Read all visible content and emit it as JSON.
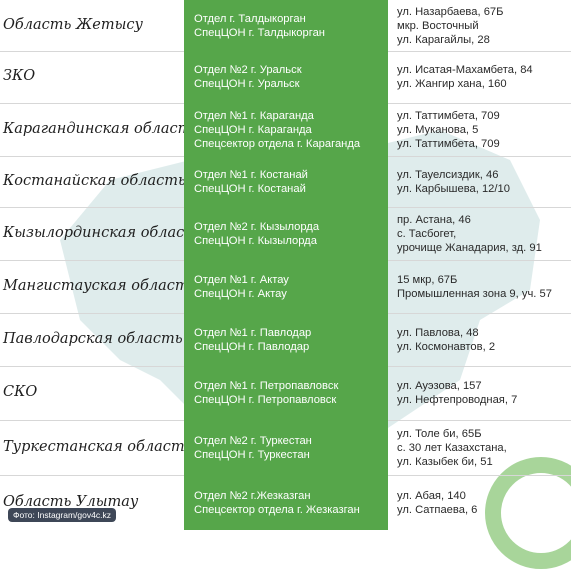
{
  "rows": [
    {
      "region": "Область Жетысу",
      "offices": [
        "Отдел г. Талдыкорган",
        "СпецЦОН г. Талдыкорган"
      ],
      "addresses": [
        "ул. Назарбаева, 67Б",
        "мкр. Восточный",
        "ул. Карагайлы, 28"
      ]
    },
    {
      "region": "ЗКО",
      "offices": [
        "Отдел №2 г. Уральск",
        "СпецЦОН г. Уральск"
      ],
      "addresses": [
        "ул. Исатая-Махамбета, 84",
        "ул. Жангир хана, 160"
      ]
    },
    {
      "region": "Карагандинская область",
      "offices": [
        "Отдел №1 г. Караганда",
        "СпецЦОН г. Караганда",
        "Спецсектор отдела г. Караганда"
      ],
      "addresses": [
        "ул. Таттимбета, 709",
        "ул. Муканова, 5",
        "ул. Таттимбета, 709"
      ]
    },
    {
      "region": "Костанайская область",
      "offices": [
        "Отдел №1 г. Костанай",
        "СпецЦОН г. Костанай"
      ],
      "addresses": [
        "ул. Тауелсиздик, 46",
        "ул. Карбышева, 12/10"
      ]
    },
    {
      "region": "Кызылординская область",
      "offices": [
        "Отдел №2 г. Кызылорда",
        "СпецЦОН г. Кызылорда"
      ],
      "addresses": [
        "пр. Астана, 46",
        "с. Тасбогет,",
        "урочище Жанадария, зд. 91"
      ]
    },
    {
      "region": "Мангистауская область",
      "offices": [
        "Отдел №1 г. Актау",
        "СпецЦОН г. Актау"
      ],
      "addresses": [
        "15 мкр, 67Б",
        "Промышленная зона 9, уч. 57"
      ]
    },
    {
      "region": "Павлодарская область",
      "offices": [
        "Отдел №1 г. Павлодар",
        "СпецЦОН г. Павлодар"
      ],
      "addresses": [
        "ул. Павлова, 48",
        "ул. Космонавтов, 2"
      ]
    },
    {
      "region": "СКО",
      "offices": [
        "Отдел №1 г. Петропавловск",
        "СпецЦОН г. Петропавловск"
      ],
      "addresses": [
        "ул. Ауэзова, 157",
        "ул. Нефтепроводная, 7"
      ]
    },
    {
      "region": "Туркестанская область",
      "offices": [
        "Отдел №2 г. Туркестан",
        "СпецЦОН г. Туркестан"
      ],
      "addresses": [
        "ул. Толе би, 65Б",
        "с. 30 лет Казахстана,",
        "ул. Казыбек би, 51"
      ]
    },
    {
      "region": "Область Улытау",
      "offices": [
        "Отдел №2 г.Жезказган",
        "Спецсектор отдела  г. Жезказган"
      ],
      "addresses": [
        "ул. Абая, 140",
        "ул. Сатпаева, 6"
      ]
    }
  ],
  "credit": "Фото: Instagram/gov4c.kz",
  "colors": {
    "accent_green": "#56a64a",
    "map_watermark": "#c5dede",
    "ring_green": "#a8d59a"
  }
}
